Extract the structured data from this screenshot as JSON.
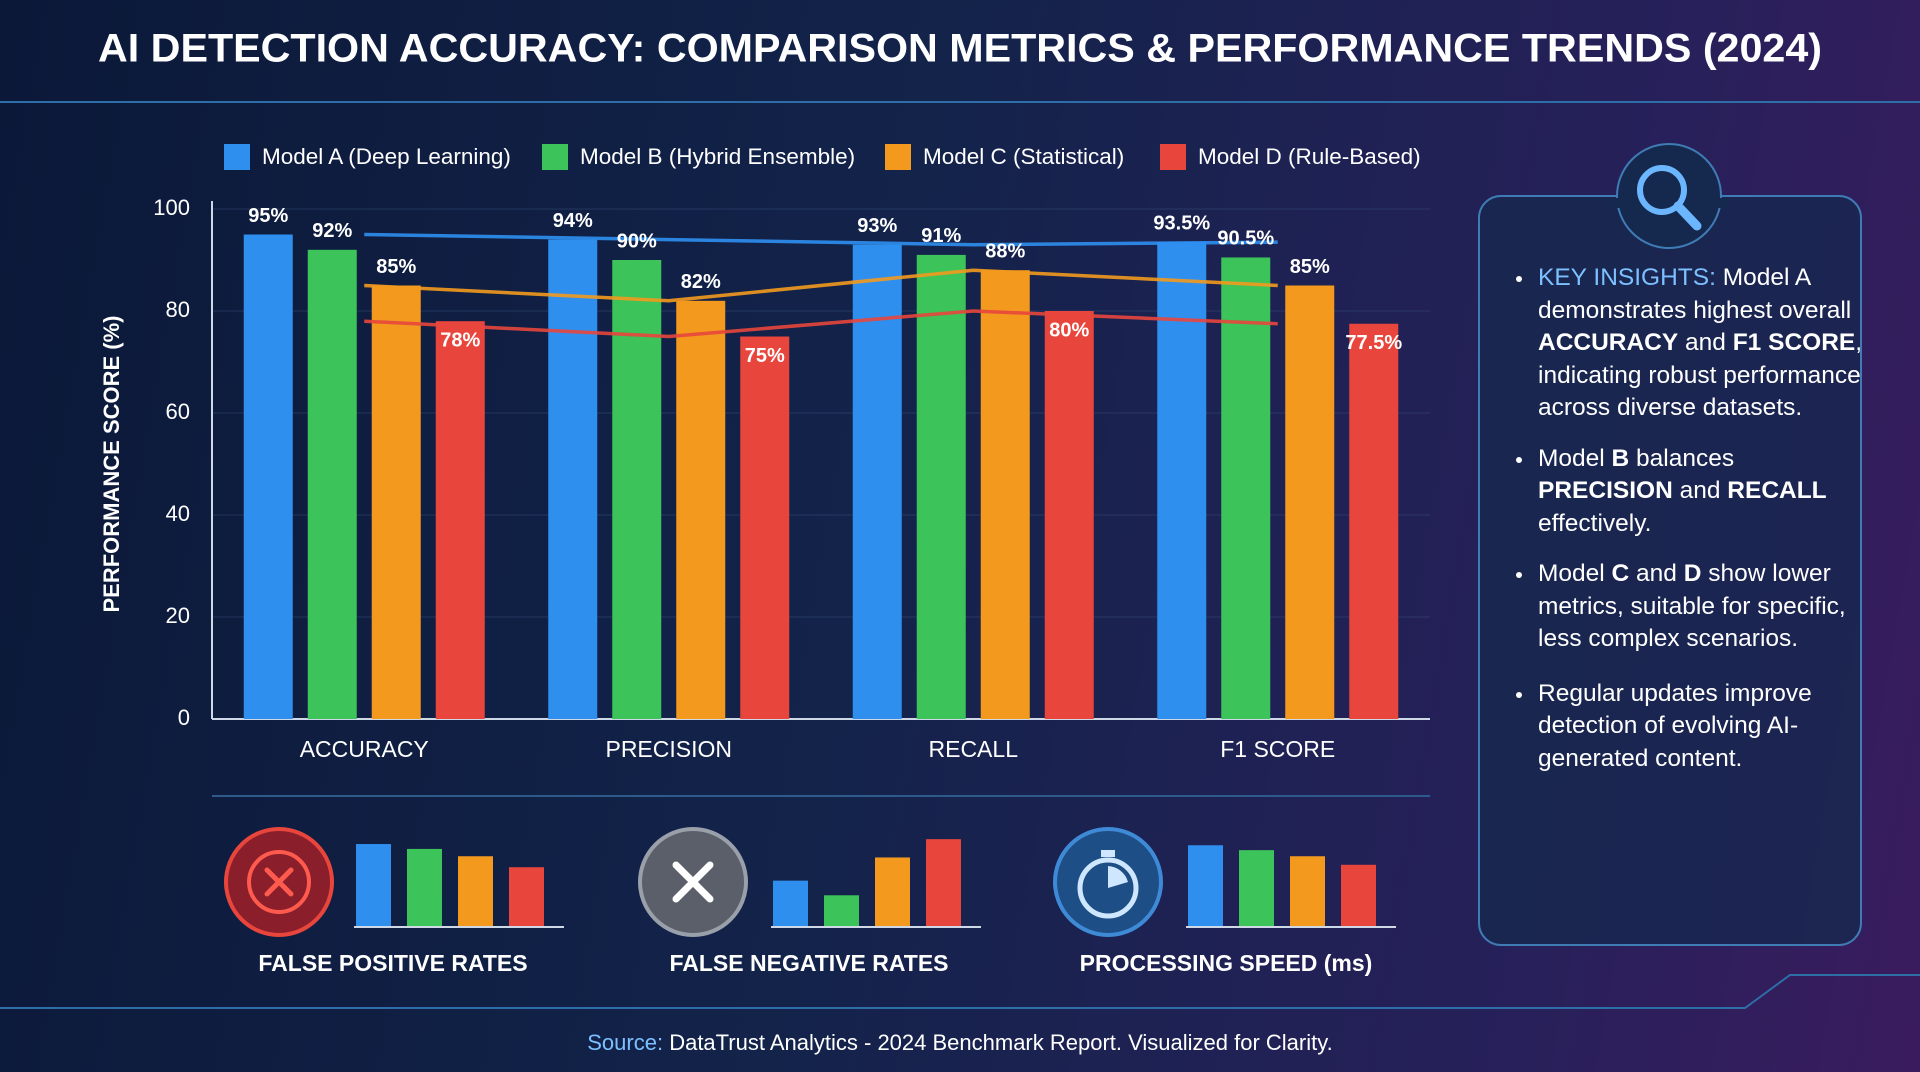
{
  "chart_data": [
    {
      "type": "bar",
      "title": "AI DETECTION ACCURACY: COMPARISON METRICS & PERFORMANCE TRENDS (2024)",
      "y_label": "PERFORMANCE SCORE (%)",
      "categories": [
        "ACCURACY",
        "PRECISION",
        "RECALL",
        "F1 SCORE"
      ],
      "series": [
        {
          "name": "Model A (Deep Learning)",
          "color": "#2f8fef",
          "values": [
            95,
            94,
            93,
            93.5
          ],
          "value_labels": [
            "95%",
            "94%",
            "93%",
            "93.5%"
          ],
          "trend_line": true
        },
        {
          "name": "Model B (Hybrid Ensemble)",
          "color": "#3cc35a",
          "values": [
            92,
            90,
            91,
            90.5
          ],
          "value_labels": [
            "92%",
            "90%",
            "91%",
            "90.5%"
          ],
          "trend_line": false
        },
        {
          "name": "Model C (Statistical)",
          "color": "#f39a1e",
          "values": [
            85,
            82,
            88,
            85
          ],
          "value_labels": [
            "85%",
            "82%",
            "88%",
            "85%"
          ],
          "trend_line": true
        },
        {
          "name": "Model D (Rule-Based)",
          "color": "#e8463c",
          "values": [
            78,
            75,
            80,
            77.5
          ],
          "value_labels": [
            "78%",
            "75%",
            "80%",
            "77.5%"
          ],
          "trend_line": true
        }
      ],
      "ylim": [
        0,
        100
      ],
      "yticks": [
        0,
        20,
        40,
        60,
        80,
        100
      ],
      "grid": true,
      "legend": "top"
    },
    {
      "type": "bar",
      "title": "FALSE POSITIVE RATES",
      "values": [
        68,
        64,
        58,
        49
      ],
      "colors": [
        "#2f8fef",
        "#3cc35a",
        "#f39a1e",
        "#e8463c"
      ]
    },
    {
      "type": "bar",
      "title": "FALSE NEGATIVE RATES",
      "values": [
        38,
        26,
        57,
        72
      ],
      "colors": [
        "#2f8fef",
        "#3cc35a",
        "#f39a1e",
        "#e8463c"
      ]
    },
    {
      "type": "bar",
      "title": "PROCESSING SPEED (ms)",
      "values": [
        67,
        63,
        58,
        51
      ],
      "colors": [
        "#2f8fef",
        "#3cc35a",
        "#f39a1e",
        "#e8463c"
      ]
    }
  ],
  "insights": [
    [
      "KEY INSIGHTS:",
      " Model A demonstrates highest overall ",
      "ACCURACY",
      " and ",
      "F1 SCORE",
      ", indicating robust performance across diverse datasets."
    ],
    [
      "Model ",
      "B",
      " balances ",
      "PRECISION",
      " and ",
      "RECALL",
      " effectively."
    ],
    [
      "Model ",
      "C",
      " and ",
      "D",
      " show lower metrics, suitable for specific, less complex scenarios."
    ],
    [
      "Regular updates improve detection of evolving AI-generated content."
    ]
  ],
  "source": {
    "label": "Source:",
    "text": " DataTrust Analytics - 2024 Benchmark Report. Visualized for Clarity."
  }
}
